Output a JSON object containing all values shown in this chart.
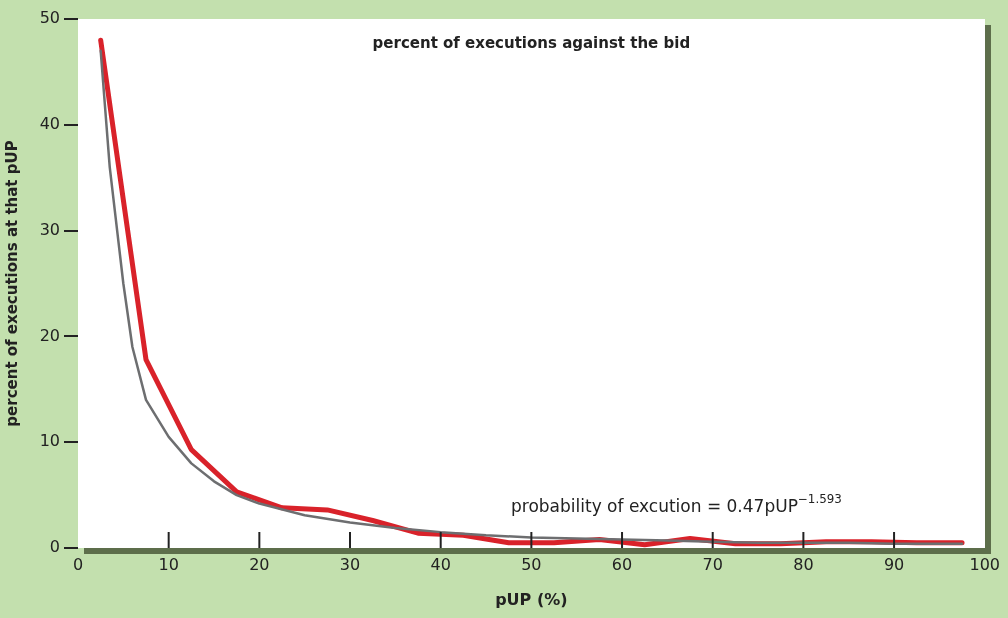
{
  "chart_data": {
    "type": "line",
    "title": "percent of executions against the bid",
    "xlabel": "pUP (%)",
    "ylabel": "percent of executions at that pUP",
    "xlim": [
      0,
      100
    ],
    "xticks": [
      0,
      10,
      20,
      30,
      40,
      50,
      60,
      70,
      80,
      90,
      100
    ],
    "ylim": [
      0,
      50
    ],
    "yticks": [
      0,
      10,
      20,
      30,
      40,
      50
    ],
    "grid": false,
    "legend": false,
    "marker": "none",
    "line_style": "solid",
    "annotations": [
      "probability of excution = 0.47pUP$^{−1.593}$"
    ],
    "series": [
      {
        "color": "#6d6e70",
        "x": [
          2.5,
          3.5,
          5,
          6,
          7.5,
          10,
          12.5,
          15,
          17.5,
          20,
          25,
          30,
          35,
          40,
          45,
          50,
          55,
          60,
          65,
          70,
          75,
          80,
          85,
          90,
          97.5
        ],
        "values": [
          47,
          36,
          25,
          19,
          14,
          10.5,
          8,
          6.3,
          5,
          4.2,
          3.1,
          2.4,
          1.9,
          1.5,
          1.2,
          1.0,
          0.9,
          0.8,
          0.7,
          0.6,
          0.5,
          0.5,
          0.5,
          0.4,
          0.4
        ]
      },
      {
        "color": "#d9222a",
        "x": [
          2.5,
          7.5,
          12.5,
          17.5,
          22.5,
          27.5,
          32.5,
          37.5,
          42.5,
          47.5,
          52.5,
          57.5,
          62.5,
          67.5,
          72.5,
          77.5,
          82.5,
          87.5,
          92.5,
          97.5
        ],
        "values": [
          48,
          17.8,
          9.3,
          5.3,
          3.8,
          3.6,
          2.6,
          1.4,
          1.2,
          0.5,
          0.5,
          0.8,
          0.3,
          0.9,
          0.4,
          0.4,
          0.6,
          0.6,
          0.5,
          0.5
        ]
      }
    ]
  }
}
